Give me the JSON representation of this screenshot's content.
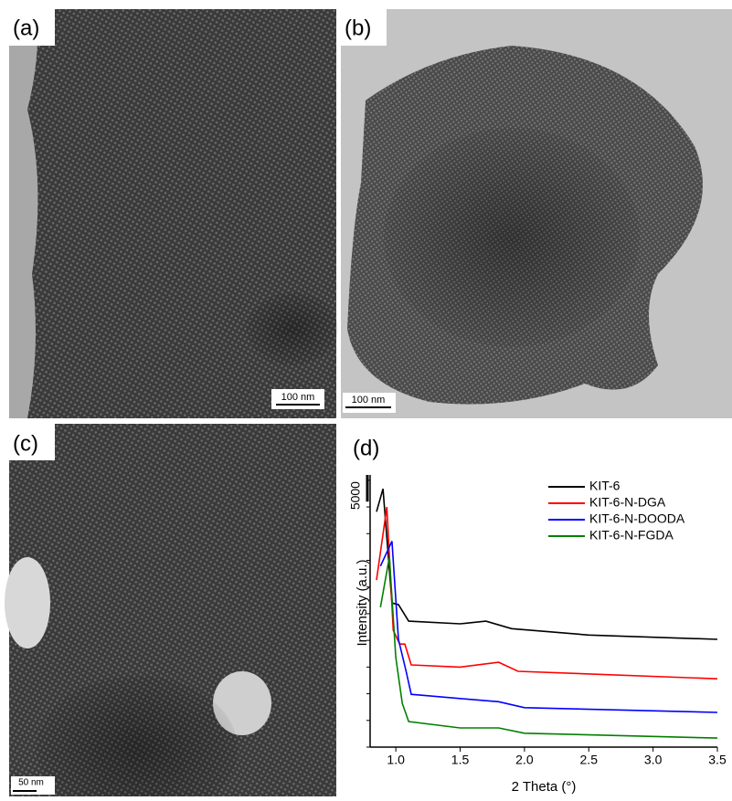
{
  "panels": [
    {
      "label": "(a)",
      "scale_bar": "100 nm"
    },
    {
      "label": "(b)",
      "scale_bar": "100 nm"
    },
    {
      "label": "(c)",
      "scale_bar": "50 nm"
    }
  ],
  "chart_data": {
    "type": "line",
    "label": "(d)",
    "xlabel": "2 Theta (°)",
    "ylabel": "Intensity (a.u.)",
    "xlim": [
      0.8,
      3.5
    ],
    "xticks": [
      {
        "value": 1,
        "label": "1.0"
      },
      1.5,
      {
        "value": 2,
        "label": "2.0"
      },
      2.5,
      {
        "value": 3,
        "label": "3.0"
      },
      3.5
    ],
    "ylim": [
      0,
      51000
    ],
    "yticks": [
      0,
      5000,
      10000,
      15000,
      20000,
      25000,
      30000,
      35000,
      40000,
      45000,
      50000
    ],
    "scale_bar": 5000,
    "series": [
      {
        "name": "KIT-6",
        "color": "#000000",
        "x": [
          0.85,
          0.9,
          0.97,
          1.02,
          1.1,
          1.5,
          1.7,
          1.9,
          2.5,
          3.5
        ],
        "values": [
          44100,
          48400,
          27000,
          26700,
          23600,
          23100,
          23600,
          22200,
          21000,
          20200
        ]
      },
      {
        "name": "KIT-6-N-DGA",
        "color": "#ff0000",
        "x": [
          0.85,
          0.93,
          0.98,
          1.03,
          1.07,
          1.12,
          1.5,
          1.8,
          1.95,
          3.5
        ],
        "values": [
          31300,
          45000,
          21900,
          19300,
          19300,
          15400,
          15000,
          15900,
          14200,
          12800
        ]
      },
      {
        "name": "KIT-6-N-DOODA",
        "color": "#0000ff",
        "x": [
          0.88,
          0.97,
          1.02,
          1.08,
          1.12,
          1.5,
          1.8,
          2.0,
          3.5
        ],
        "values": [
          33900,
          38600,
          20200,
          14200,
          9900,
          9100,
          8500,
          7400,
          6500
        ]
      },
      {
        "name": "KIT-6-N-FGDA",
        "color": "#008000",
        "x": [
          0.88,
          0.95,
          1.0,
          1.05,
          1.1,
          1.5,
          1.8,
          2.0,
          3.5
        ],
        "values": [
          26200,
          35600,
          16800,
          8200,
          4800,
          3600,
          3600,
          2600,
          1700
        ]
      }
    ]
  }
}
